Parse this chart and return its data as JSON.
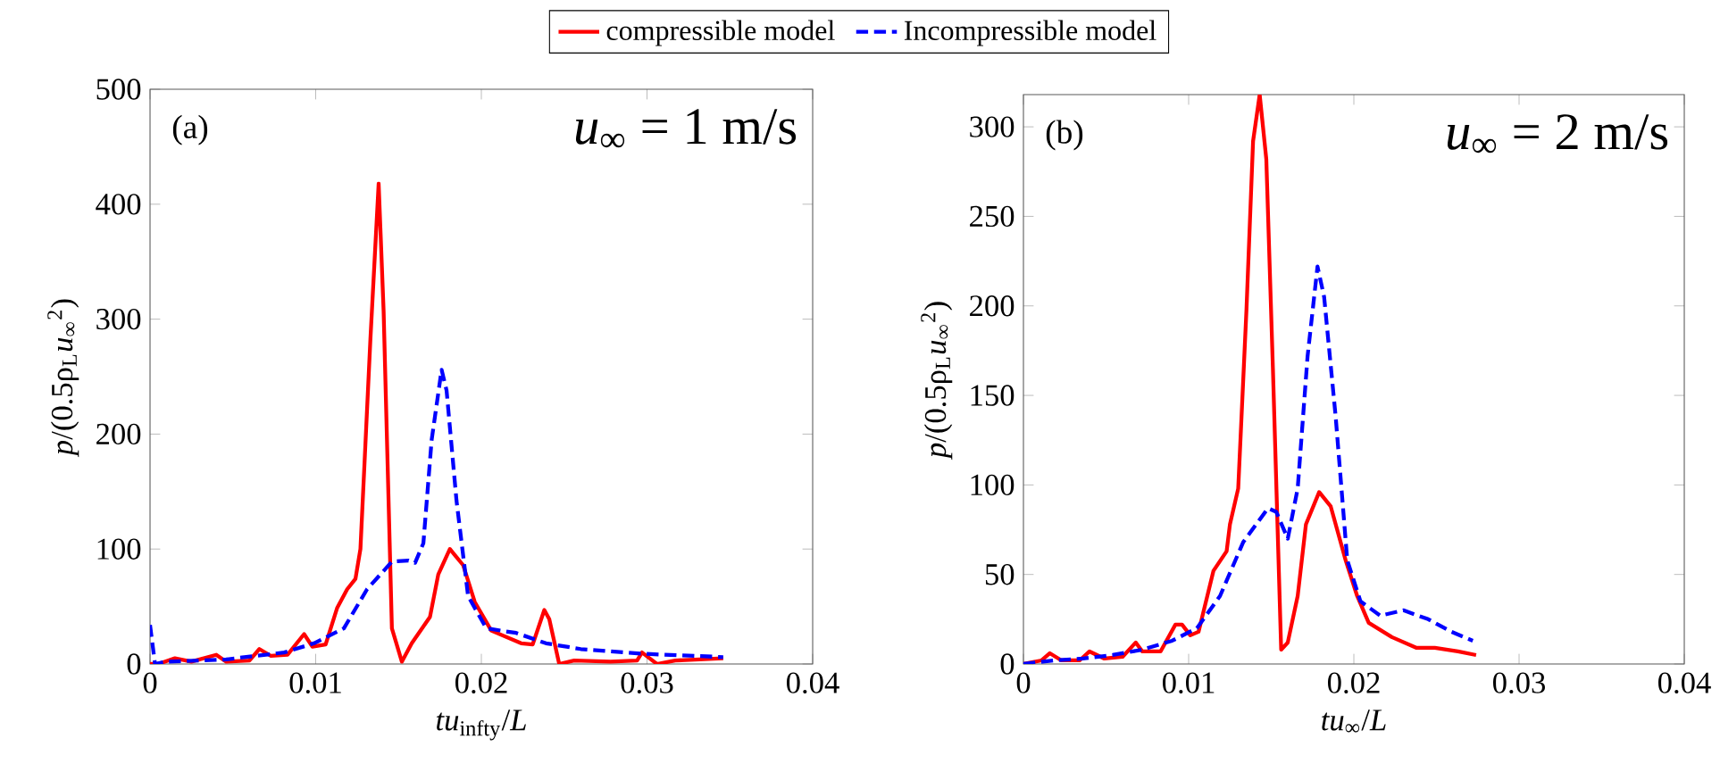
{
  "chart_data": [
    {
      "type": "line",
      "xlabel": "*tu*$_{infty}$/*L*",
      "ylabel": "*p*/(0.5ρ$_{L}$*u*$_{∞}$$^{2}$)",
      "annotations": [
        "(a)",
        "*u*$_{∞}$ = 1 m/s"
      ],
      "xlim": [
        0,
        0.04
      ],
      "xticks": [
        0,
        0.01,
        0.02,
        0.03,
        0.04
      ],
      "ylim": [
        0,
        500
      ],
      "yticks": [
        0,
        100,
        200,
        300,
        400,
        500
      ],
      "grid": false,
      "legend": "top",
      "series": [
        {
          "name": "compressible model",
          "color": "#ff0000",
          "line_style": "solid",
          "x": [
            0,
            0.0005,
            0.0015,
            0.0025,
            0.004,
            0.0046,
            0.006,
            0.0066,
            0.0073,
            0.0083,
            0.0093,
            0.0098,
            0.0106,
            0.0113,
            0.0119,
            0.0124,
            0.0127,
            0.0133,
            0.0138,
            0.0141,
            0.0146,
            0.0152,
            0.0158,
            0.0169,
            0.0174,
            0.0181,
            0.0189,
            0.0196,
            0.0206,
            0.0224,
            0.0231,
            0.0238,
            0.0241,
            0.0247,
            0.0256,
            0.0278,
            0.0294,
            0.0297,
            0.0306,
            0.0317,
            0.0346
          ],
          "values": [
            0,
            0,
            5,
            2,
            8,
            2,
            3,
            13,
            7,
            8,
            26,
            15,
            17,
            49,
            65,
            74,
            100,
            282,
            418,
            307,
            31,
            2,
            18,
            41,
            78,
            100,
            86,
            54,
            29,
            18,
            17,
            47,
            39,
            0,
            3,
            2,
            3,
            10,
            0,
            3,
            5
          ]
        },
        {
          "name": "Incompressible model",
          "color": "#0000ff",
          "line_style": "dashed",
          "x": [
            0,
            0.0003,
            0.001,
            0.0046,
            0.0081,
            0.0099,
            0.0117,
            0.0131,
            0.0146,
            0.0156,
            0.016,
            0.0165,
            0.017,
            0.0176,
            0.0179,
            0.0185,
            0.0192,
            0.0203,
            0.0221,
            0.0239,
            0.026,
            0.0296,
            0.0346
          ],
          "values": [
            34,
            0,
            2,
            4,
            10,
            18,
            31,
            65,
            89,
            90,
            88,
            105,
            195,
            256,
            238,
            142,
            59,
            31,
            27,
            18,
            13,
            9,
            6
          ]
        }
      ]
    },
    {
      "type": "line",
      "xlabel": "*tu*$_{∞}$/*L*",
      "ylabel": "*p*/(0.5ρ$_{L}$*u*$_{∞}$$^{2}$)",
      "annotations": [
        "(b)",
        "*u*$_{∞}$ = 2 m/s"
      ],
      "xlim": [
        0,
        0.04
      ],
      "xticks": [
        0,
        0.01,
        0.02,
        0.03,
        0.04
      ],
      "ylim": [
        0,
        318
      ],
      "yticks": [
        0,
        50,
        100,
        150,
        200,
        250,
        300
      ],
      "grid": false,
      "series": [
        {
          "color": "#ff0000",
          "line_style": "solid",
          "x": [
            0,
            0.0011,
            0.0016,
            0.0023,
            0.0034,
            0.004,
            0.0049,
            0.006,
            0.0068,
            0.0072,
            0.0083,
            0.0092,
            0.0096,
            0.0101,
            0.0106,
            0.0115,
            0.0123,
            0.0125,
            0.013,
            0.0135,
            0.0139,
            0.0143,
            0.0147,
            0.0151,
            0.0156,
            0.016,
            0.0166,
            0.0171,
            0.0179,
            0.0186,
            0.0195,
            0.0202,
            0.0209,
            0.0223,
            0.0238,
            0.0249,
            0.0263,
            0.0274
          ],
          "values": [
            0,
            2,
            6,
            2,
            2,
            7,
            3,
            4,
            12,
            7,
            7,
            22,
            22,
            16,
            18,
            52,
            63,
            78,
            98,
            198,
            292,
            318,
            282,
            165,
            8,
            12,
            38,
            78,
            96,
            88,
            58,
            38,
            23,
            15,
            9,
            9,
            7,
            5
          ]
        },
        {
          "color": "#0000ff",
          "line_style": "dashed",
          "x": [
            0,
            0.0018,
            0.0036,
            0.0054,
            0.0072,
            0.009,
            0.0105,
            0.0119,
            0.0133,
            0.0148,
            0.0153,
            0.016,
            0.0166,
            0.0172,
            0.0178,
            0.0182,
            0.0189,
            0.0196,
            0.0204,
            0.0216,
            0.023,
            0.0245,
            0.0259,
            0.0272
          ],
          "values": [
            0,
            2,
            3,
            5,
            8,
            13,
            20,
            38,
            68,
            87,
            85,
            70,
            98,
            172,
            222,
            205,
            138,
            58,
            35,
            27,
            30,
            25,
            18,
            13
          ]
        }
      ]
    }
  ]
}
